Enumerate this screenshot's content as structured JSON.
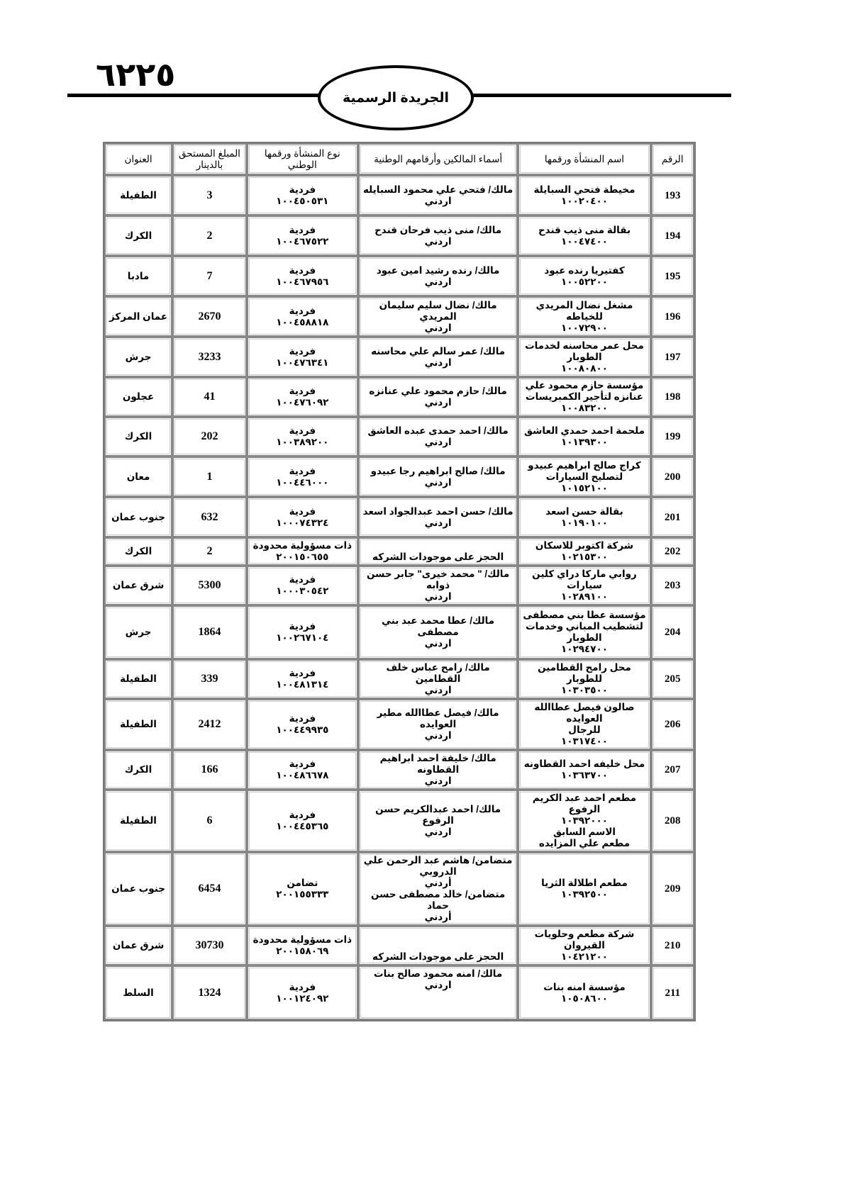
{
  "header": {
    "page_number": "٦٢٢٥",
    "title": "الجريدة الرسمية"
  },
  "table": {
    "columns": [
      "الرقم",
      "اسم المنشأة ورقمها",
      "أسماء المالكين وأرقامهم الوطنية",
      "نوع المنشأة ورقمها الوطني",
      "المبلغ المستحق بالدينار",
      "العنوان"
    ],
    "rows": [
      {
        "no": "193",
        "name": [
          "مخيطة فتحي السبايلة",
          "١٠٠٢٠٤٠٠"
        ],
        "owners": [
          "مالك/ فتحي علي محمود السبايله",
          "اردني"
        ],
        "type": [
          "فردية",
          "١٠٠٤٥٠٥٣١"
        ],
        "amount": "3",
        "address": "الطفيلة"
      },
      {
        "no": "194",
        "name": [
          "بقالة منى ذيب قندح",
          "١٠٠٤٧٤٠٠"
        ],
        "owners": [
          "مالك/ منى ذيب فرحان قندح",
          "اردني"
        ],
        "type": [
          "فردية",
          "١٠٠٤٦٧٥٢٢"
        ],
        "amount": "2",
        "address": "الكرك"
      },
      {
        "no": "195",
        "name": [
          "كفتيريا رنده عبود",
          "١٠٠٥٢٢٠٠"
        ],
        "owners": [
          "مالك/ رنده رشيد امين عبود",
          "اردني"
        ],
        "type": [
          "فردية",
          "١٠٠٤٦٧٩٥٦"
        ],
        "amount": "7",
        "address": "مادبا"
      },
      {
        "no": "196",
        "name": [
          "مشغل نضال المريدي للخياطه",
          "١٠٠٧٢٩٠٠"
        ],
        "owners": [
          "مالك/ نضال سليم سليمان المريدي",
          "اردني"
        ],
        "type": [
          "فردية",
          "١٠٠٤٥٨٨١٨"
        ],
        "amount": "2670",
        "address": "عمان المركز"
      },
      {
        "no": "197",
        "name": [
          "محل عمر محاسنه لخدمات",
          "الطوبار",
          "١٠٠٨٠٨٠٠"
        ],
        "owners": [
          "مالك/ عمر سالم علي محاسنه",
          "اردني"
        ],
        "type": [
          "فردية",
          "١٠٠٤٧٦٣٤١"
        ],
        "amount": "3233",
        "address": "جرش"
      },
      {
        "no": "198",
        "name": [
          "مؤسسة حازم محمود علي",
          "عنانزه لتأجير الكمبريسات",
          "١٠٠٨٣٢٠٠"
        ],
        "owners": [
          "مالك/ حازم محمود علي عنانزه",
          "اردني"
        ],
        "type": [
          "فردية",
          "١٠٠٤٧٦٠٩٢"
        ],
        "amount": "41",
        "address": "عجلون"
      },
      {
        "no": "199",
        "name": [
          "ملحمة احمد حمدي العاشق",
          "١٠١٣٩٣٠٠"
        ],
        "owners": [
          "مالك/ احمد حمدى عبده العاشق",
          "اردني"
        ],
        "type": [
          "فردية",
          "١٠٠٣٨٩٢٠٠"
        ],
        "amount": "202",
        "address": "الكرك"
      },
      {
        "no": "200",
        "name": [
          "كراج صالح ابراهيم عبيدو",
          "لتصليح السيارات",
          "١٠١٥٢١٠٠"
        ],
        "owners": [
          "مالك/ صالح ابراهيم رجا عبيدو",
          "اردني"
        ],
        "type": [
          "فردية",
          "١٠٠٤٤٦٠٠٠"
        ],
        "amount": "1",
        "address": "معان"
      },
      {
        "no": "201",
        "name": [
          "بقالة حسن اسعد",
          "١٠١٩٠١٠٠"
        ],
        "owners": [
          "مالك/ حسن احمد عبدالجواد اسعد",
          "اردني"
        ],
        "type": [
          "فردية",
          "١٠٠٠٧٤٣٢٤"
        ],
        "amount": "632",
        "address": "جنوب عمان"
      },
      {
        "no": "202",
        "name": [
          "شركة اكتوبر للاسكان",
          "١٠٢١٥٣٠٠"
        ],
        "owners": [
          "الحجز على موجودات الشركه"
        ],
        "type": [
          "ذات مسؤولية محدودة",
          "٢٠٠١٥٠٦٥٥"
        ],
        "amount": "2",
        "address": "الكرك"
      },
      {
        "no": "203",
        "name": [
          "روابي ماركا دراي كلين",
          "سيارات",
          "١٠٢٨٩١٠٠"
        ],
        "owners": [
          "مالك/ \" محمد خيرى\" جابر حسن ذوابه",
          "اردني"
        ],
        "type": [
          "فردية",
          "١٠٠٠٣٠٥٤٢"
        ],
        "amount": "5300",
        "address": "شرق عمان"
      },
      {
        "no": "204",
        "name": [
          "مؤسسة عطا بني مصطفى",
          "لتشطيب المباني وخدمات",
          "الطوبار",
          "١٠٢٩٤٧٠٠"
        ],
        "owners": [
          "مالك/ عطا محمد عبد بني مصطفى",
          "اردني"
        ],
        "type": [
          "فردية",
          "١٠٠٢٦٧١٠٤"
        ],
        "amount": "1864",
        "address": "جرش"
      },
      {
        "no": "205",
        "name": [
          "محل رامح القطامين للطوبار",
          "١٠٣٠٣٥٠٠"
        ],
        "owners": [
          "مالك/ رامح عباس خلف القطامين",
          "اردني"
        ],
        "type": [
          "فردية",
          "١٠٠٤٨١٣١٤"
        ],
        "amount": "339",
        "address": "الطفيلة"
      },
      {
        "no": "206",
        "name": [
          "صالون فيصل عطاالله العوايده",
          "للرجال",
          "١٠٣١٧٤٠٠"
        ],
        "owners": [
          "مالك/ فيصل عطاالله مطير العوايده",
          "اردني"
        ],
        "type": [
          "فردية",
          "١٠٠٤٤٩٩٣٥"
        ],
        "amount": "2412",
        "address": "الطفيلة"
      },
      {
        "no": "207",
        "name": [
          "محل خليفه احمد القطاونه",
          "١٠٣٦٣٧٠٠"
        ],
        "owners": [
          "مالك/ خليفة احمد ابراهيم القطاونه",
          "اردني"
        ],
        "type": [
          "فردية",
          "١٠٠٤٨٦٦٧٨"
        ],
        "amount": "166",
        "address": "الكرك"
      },
      {
        "no": "208",
        "name": [
          "مطعم احمد عبد الكريم الرفوع",
          "١٠٣٩٢٠٠٠",
          "الاسم السابق",
          "مطعم علي المزايده"
        ],
        "owners": [
          "مالك/ احمد عبدالكريم حسن الرفوع",
          "اردني"
        ],
        "type": [
          "فردية",
          "١٠٠٤٤٥٣٦٥"
        ],
        "amount": "6",
        "address": "الطفيلة"
      },
      {
        "no": "209",
        "name": [
          "مطعم اطلالة الثريا",
          "١٠٣٩٢٥٠٠"
        ],
        "owners": [
          "متضامن/ هاشم عبد الرحمن علي",
          "الدروبي",
          "أردني",
          "متضامن/ خالد مصطفى حسن حماد",
          "أردني"
        ],
        "type": [
          "تضامن",
          "٢٠٠١٥٥٣٣٣"
        ],
        "amount": "6454",
        "address": "جنوب عمان"
      },
      {
        "no": "210",
        "name": [
          "شركة مطعم وحلويات القيروان",
          "١٠٤٢١٢٠٠"
        ],
        "owners": [
          "الحجز على موجودات الشركه"
        ],
        "type": [
          "ذات مسؤولية محدودة",
          "٢٠٠١٥٨٠٦٩"
        ],
        "amount": "30730",
        "address": "شرق عمان"
      },
      {
        "no": "211",
        "name": [
          "مؤسسة امنه بنات",
          "١٠٥٠٨٦٠٠"
        ],
        "owners": [
          "مالك/ امنه محمود صالح بنات",
          "اردني"
        ],
        "type": [
          "فردية",
          "١٠٠١٢٤٠٩٢"
        ],
        "amount": "1324",
        "address": "السلط"
      }
    ]
  }
}
